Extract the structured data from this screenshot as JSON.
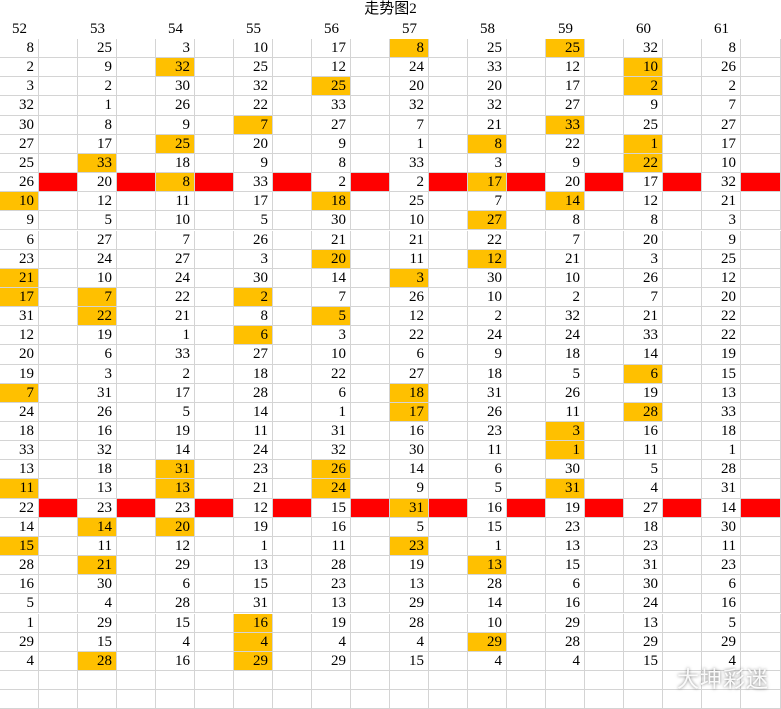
{
  "title": "走势图2",
  "watermark": "大坤彩迷",
  "colors": {
    "highlight": "#ffc000",
    "marker": "#ff0000",
    "grid": "#d4d4d4"
  },
  "columns": [
    "52",
    "53",
    "54",
    "55",
    "56",
    "57",
    "58",
    "59",
    "60",
    "61"
  ],
  "rows": [
    [
      [
        8,
        0
      ],
      [
        25,
        0
      ],
      [
        3,
        0
      ],
      [
        10,
        0
      ],
      [
        17,
        0
      ],
      [
        8,
        1
      ],
      [
        25,
        0
      ],
      [
        25,
        1
      ],
      [
        32,
        0
      ],
      [
        8,
        0
      ]
    ],
    [
      [
        2,
        0
      ],
      [
        9,
        0
      ],
      [
        32,
        1
      ],
      [
        25,
        0
      ],
      [
        12,
        0
      ],
      [
        24,
        0
      ],
      [
        33,
        0
      ],
      [
        12,
        0
      ],
      [
        10,
        1
      ],
      [
        26,
        0
      ]
    ],
    [
      [
        3,
        0
      ],
      [
        2,
        0
      ],
      [
        30,
        0
      ],
      [
        32,
        0
      ],
      [
        25,
        1
      ],
      [
        20,
        0
      ],
      [
        20,
        0
      ],
      [
        17,
        0
      ],
      [
        2,
        1
      ],
      [
        2,
        0
      ]
    ],
    [
      [
        32,
        0
      ],
      [
        1,
        0
      ],
      [
        26,
        0
      ],
      [
        22,
        0
      ],
      [
        33,
        0
      ],
      [
        32,
        0
      ],
      [
        32,
        0
      ],
      [
        27,
        0
      ],
      [
        9,
        0
      ],
      [
        7,
        0
      ]
    ],
    [
      [
        30,
        0
      ],
      [
        8,
        0
      ],
      [
        9,
        0
      ],
      [
        7,
        1
      ],
      [
        27,
        0
      ],
      [
        7,
        0
      ],
      [
        21,
        0
      ],
      [
        33,
        1
      ],
      [
        25,
        0
      ],
      [
        27,
        0
      ]
    ],
    [
      [
        27,
        0
      ],
      [
        17,
        0
      ],
      [
        25,
        1
      ],
      [
        20,
        0
      ],
      [
        9,
        0
      ],
      [
        1,
        0
      ],
      [
        8,
        1
      ],
      [
        22,
        0
      ],
      [
        1,
        1
      ],
      [
        17,
        0
      ]
    ],
    [
      [
        25,
        0
      ],
      [
        33,
        1
      ],
      [
        18,
        0
      ],
      [
        9,
        0
      ],
      [
        8,
        0
      ],
      [
        33,
        0
      ],
      [
        3,
        0
      ],
      [
        9,
        0
      ],
      [
        22,
        1
      ],
      [
        10,
        0
      ]
    ],
    [
      [
        26,
        0
      ],
      [
        20,
        0
      ],
      [
        8,
        1
      ],
      [
        33,
        0
      ],
      [
        2,
        0
      ],
      [
        2,
        0
      ],
      [
        17,
        1
      ],
      [
        20,
        0
      ],
      [
        17,
        0
      ],
      [
        32,
        0
      ]
    ],
    [
      [
        10,
        1
      ],
      [
        12,
        0
      ],
      [
        11,
        0
      ],
      [
        17,
        0
      ],
      [
        18,
        1
      ],
      [
        25,
        0
      ],
      [
        7,
        0
      ],
      [
        14,
        1
      ],
      [
        12,
        0
      ],
      [
        21,
        0
      ]
    ],
    [
      [
        9,
        0
      ],
      [
        5,
        0
      ],
      [
        10,
        0
      ],
      [
        5,
        0
      ],
      [
        30,
        0
      ],
      [
        10,
        0
      ],
      [
        27,
        1
      ],
      [
        8,
        0
      ],
      [
        8,
        0
      ],
      [
        3,
        0
      ]
    ],
    [
      [
        6,
        0
      ],
      [
        27,
        0
      ],
      [
        7,
        0
      ],
      [
        26,
        0
      ],
      [
        21,
        0
      ],
      [
        21,
        0
      ],
      [
        22,
        0
      ],
      [
        7,
        0
      ],
      [
        20,
        0
      ],
      [
        9,
        0
      ]
    ],
    [
      [
        23,
        0
      ],
      [
        24,
        0
      ],
      [
        27,
        0
      ],
      [
        3,
        0
      ],
      [
        20,
        1
      ],
      [
        11,
        0
      ],
      [
        12,
        1
      ],
      [
        21,
        0
      ],
      [
        3,
        0
      ],
      [
        25,
        0
      ]
    ],
    [
      [
        21,
        1
      ],
      [
        10,
        0
      ],
      [
        24,
        0
      ],
      [
        30,
        0
      ],
      [
        14,
        0
      ],
      [
        3,
        1
      ],
      [
        30,
        0
      ],
      [
        10,
        0
      ],
      [
        26,
        0
      ],
      [
        12,
        0
      ]
    ],
    [
      [
        17,
        1
      ],
      [
        7,
        1
      ],
      [
        22,
        0
      ],
      [
        2,
        1
      ],
      [
        7,
        0
      ],
      [
        26,
        0
      ],
      [
        10,
        0
      ],
      [
        2,
        0
      ],
      [
        7,
        0
      ],
      [
        20,
        0
      ]
    ],
    [
      [
        31,
        0
      ],
      [
        22,
        1
      ],
      [
        21,
        0
      ],
      [
        8,
        0
      ],
      [
        5,
        1
      ],
      [
        12,
        0
      ],
      [
        2,
        0
      ],
      [
        32,
        0
      ],
      [
        21,
        0
      ],
      [
        22,
        0
      ]
    ],
    [
      [
        12,
        0
      ],
      [
        19,
        0
      ],
      [
        1,
        0
      ],
      [
        6,
        1
      ],
      [
        3,
        0
      ],
      [
        22,
        0
      ],
      [
        24,
        0
      ],
      [
        24,
        0
      ],
      [
        33,
        0
      ],
      [
        22,
        0
      ]
    ],
    [
      [
        20,
        0
      ],
      [
        6,
        0
      ],
      [
        33,
        0
      ],
      [
        27,
        0
      ],
      [
        10,
        0
      ],
      [
        6,
        0
      ],
      [
        9,
        0
      ],
      [
        18,
        0
      ],
      [
        14,
        0
      ],
      [
        19,
        0
      ]
    ],
    [
      [
        19,
        0
      ],
      [
        3,
        0
      ],
      [
        2,
        0
      ],
      [
        18,
        0
      ],
      [
        22,
        0
      ],
      [
        27,
        0
      ],
      [
        18,
        0
      ],
      [
        5,
        0
      ],
      [
        6,
        1
      ],
      [
        15,
        0
      ]
    ],
    [
      [
        7,
        1
      ],
      [
        31,
        0
      ],
      [
        17,
        0
      ],
      [
        28,
        0
      ],
      [
        6,
        0
      ],
      [
        18,
        1
      ],
      [
        31,
        0
      ],
      [
        26,
        0
      ],
      [
        19,
        0
      ],
      [
        13,
        0
      ]
    ],
    [
      [
        24,
        0
      ],
      [
        26,
        0
      ],
      [
        5,
        0
      ],
      [
        14,
        0
      ],
      [
        1,
        0
      ],
      [
        17,
        1
      ],
      [
        26,
        0
      ],
      [
        11,
        0
      ],
      [
        28,
        1
      ],
      [
        33,
        0
      ]
    ],
    [
      [
        18,
        0
      ],
      [
        16,
        0
      ],
      [
        19,
        0
      ],
      [
        11,
        0
      ],
      [
        31,
        0
      ],
      [
        16,
        0
      ],
      [
        23,
        0
      ],
      [
        3,
        1
      ],
      [
        16,
        0
      ],
      [
        18,
        0
      ]
    ],
    [
      [
        33,
        0
      ],
      [
        32,
        0
      ],
      [
        14,
        0
      ],
      [
        24,
        0
      ],
      [
        32,
        0
      ],
      [
        30,
        0
      ],
      [
        11,
        0
      ],
      [
        1,
        1
      ],
      [
        11,
        0
      ],
      [
        1,
        0
      ]
    ],
    [
      [
        13,
        0
      ],
      [
        18,
        0
      ],
      [
        31,
        1
      ],
      [
        23,
        0
      ],
      [
        26,
        1
      ],
      [
        14,
        0
      ],
      [
        6,
        0
      ],
      [
        30,
        0
      ],
      [
        5,
        0
      ],
      [
        28,
        0
      ]
    ],
    [
      [
        11,
        1
      ],
      [
        13,
        0
      ],
      [
        13,
        1
      ],
      [
        21,
        0
      ],
      [
        24,
        1
      ],
      [
        9,
        0
      ],
      [
        5,
        0
      ],
      [
        31,
        1
      ],
      [
        4,
        0
      ],
      [
        31,
        0
      ]
    ],
    [
      [
        22,
        0
      ],
      [
        23,
        0
      ],
      [
        23,
        0
      ],
      [
        12,
        0
      ],
      [
        15,
        0
      ],
      [
        31,
        1
      ],
      [
        16,
        0
      ],
      [
        19,
        0
      ],
      [
        27,
        0
      ],
      [
        14,
        0
      ]
    ],
    [
      [
        14,
        0
      ],
      [
        14,
        1
      ],
      [
        20,
        1
      ],
      [
        19,
        0
      ],
      [
        16,
        0
      ],
      [
        5,
        0
      ],
      [
        15,
        0
      ],
      [
        23,
        0
      ],
      [
        18,
        0
      ],
      [
        30,
        0
      ]
    ],
    [
      [
        15,
        1
      ],
      [
        11,
        0
      ],
      [
        12,
        0
      ],
      [
        1,
        0
      ],
      [
        11,
        0
      ],
      [
        23,
        1
      ],
      [
        1,
        0
      ],
      [
        13,
        0
      ],
      [
        23,
        0
      ],
      [
        11,
        0
      ]
    ],
    [
      [
        28,
        0
      ],
      [
        21,
        1
      ],
      [
        29,
        0
      ],
      [
        13,
        0
      ],
      [
        28,
        0
      ],
      [
        19,
        0
      ],
      [
        13,
        1
      ],
      [
        15,
        0
      ],
      [
        31,
        0
      ],
      [
        23,
        0
      ]
    ],
    [
      [
        16,
        0
      ],
      [
        30,
        0
      ],
      [
        6,
        0
      ],
      [
        15,
        0
      ],
      [
        23,
        0
      ],
      [
        13,
        0
      ],
      [
        28,
        0
      ],
      [
        6,
        0
      ],
      [
        30,
        0
      ],
      [
        6,
        0
      ]
    ],
    [
      [
        5,
        0
      ],
      [
        4,
        0
      ],
      [
        28,
        0
      ],
      [
        31,
        0
      ],
      [
        13,
        0
      ],
      [
        29,
        0
      ],
      [
        14,
        0
      ],
      [
        16,
        0
      ],
      [
        24,
        0
      ],
      [
        16,
        0
      ]
    ],
    [
      [
        1,
        0
      ],
      [
        29,
        0
      ],
      [
        15,
        0
      ],
      [
        16,
        1
      ],
      [
        19,
        0
      ],
      [
        28,
        0
      ],
      [
        10,
        0
      ],
      [
        29,
        0
      ],
      [
        13,
        0
      ],
      [
        5,
        0
      ]
    ],
    [
      [
        29,
        0
      ],
      [
        15,
        0
      ],
      [
        4,
        0
      ],
      [
        4,
        1
      ],
      [
        4,
        0
      ],
      [
        4,
        0
      ],
      [
        29,
        1
      ],
      [
        28,
        0
      ],
      [
        29,
        0
      ],
      [
        29,
        0
      ]
    ],
    [
      [
        4,
        0
      ],
      [
        28,
        1
      ],
      [
        16,
        0
      ],
      [
        29,
        1
      ],
      [
        29,
        0
      ],
      [
        15,
        0
      ],
      [
        4,
        0
      ],
      [
        4,
        0
      ],
      [
        15,
        0
      ],
      [
        4,
        0
      ]
    ],
    [],
    []
  ],
  "marker_rows": [
    7,
    24
  ]
}
